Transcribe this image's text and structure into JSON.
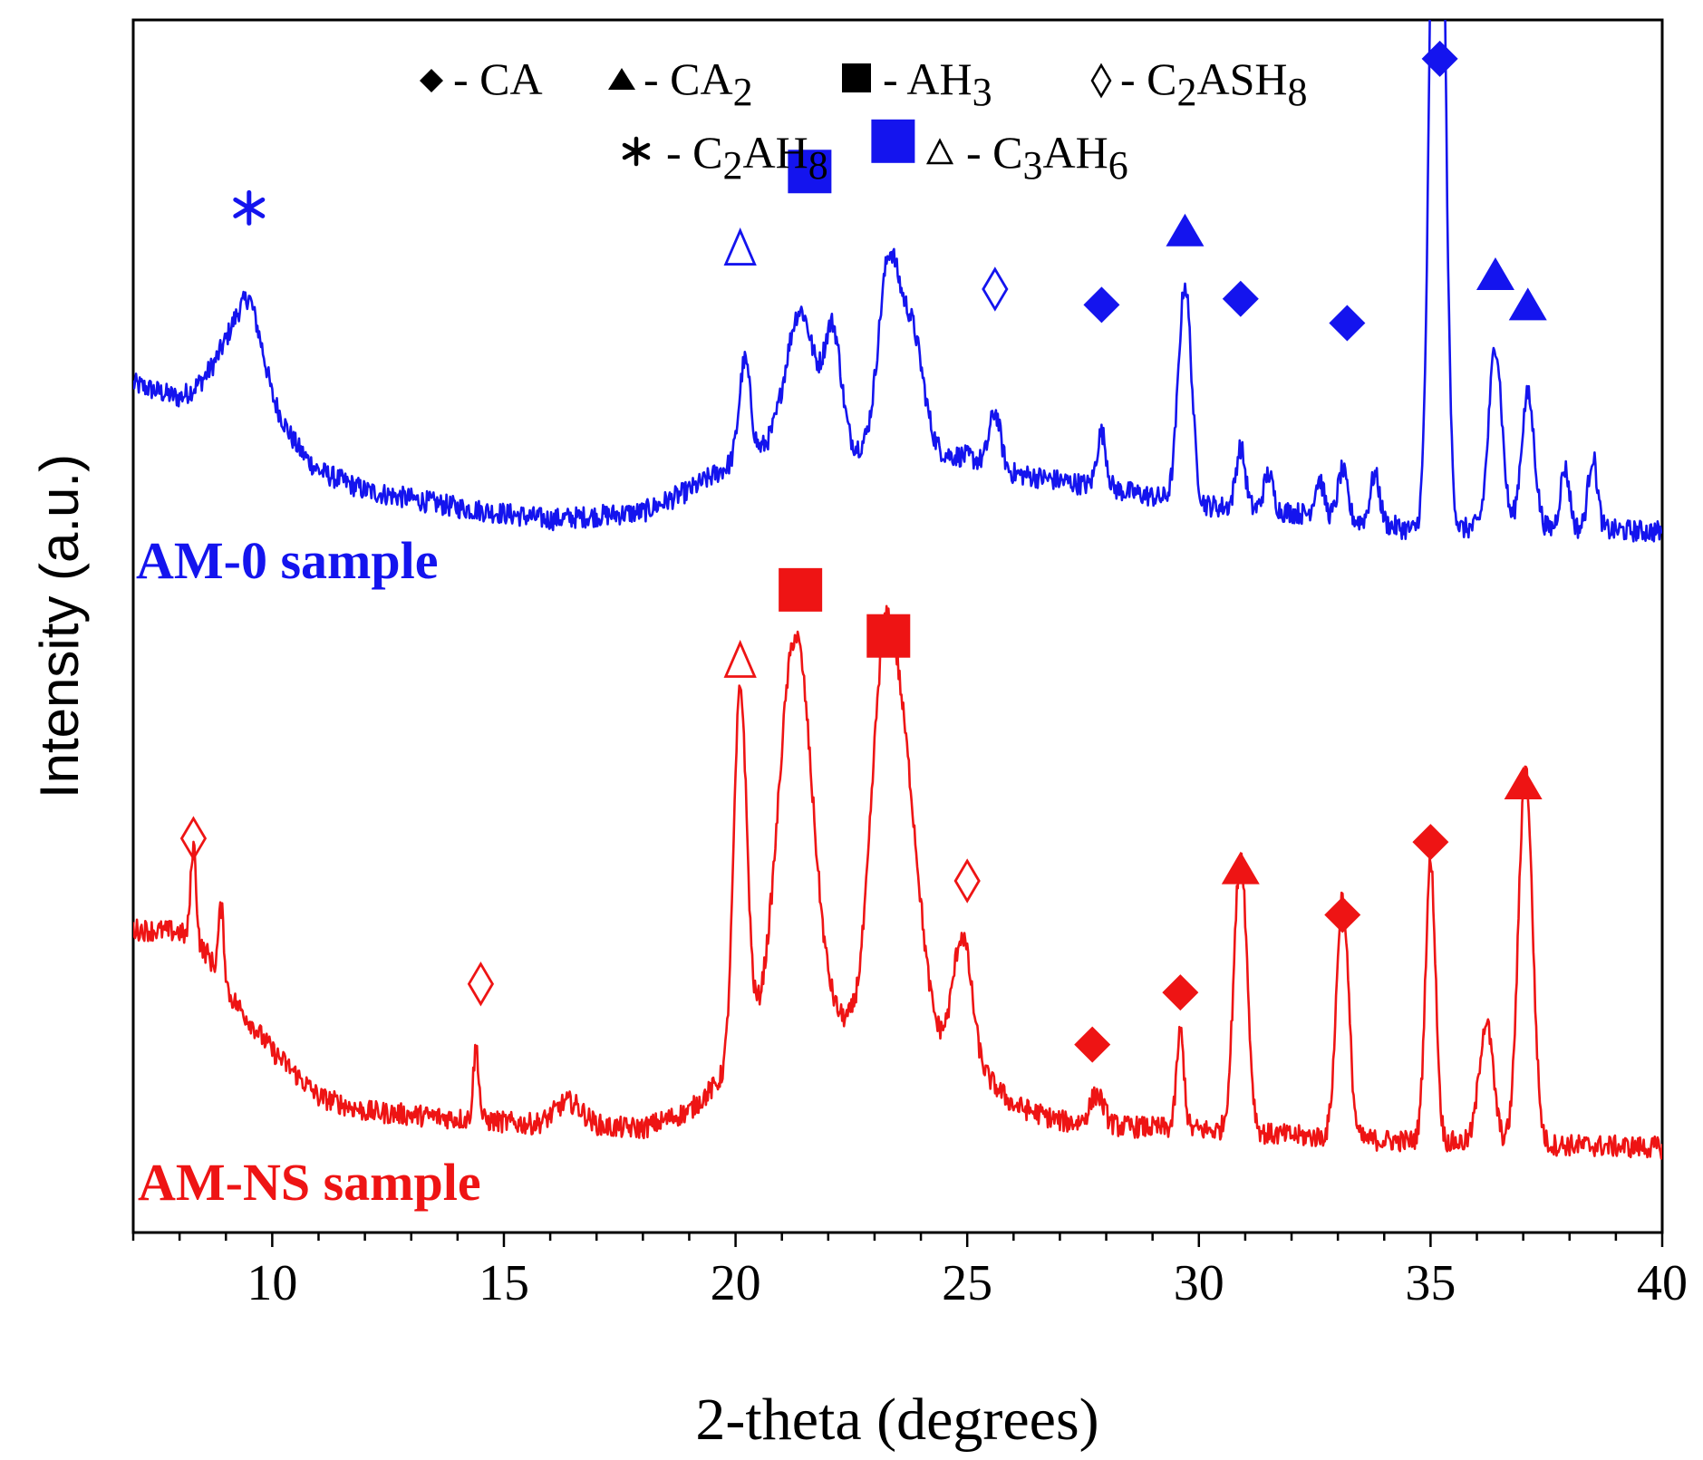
{
  "chart_data": {
    "type": "line",
    "xlabel": "2-theta (degrees)",
    "ylabel": "Intensity (a.u.)",
    "xlim": [
      7,
      40
    ],
    "ylim": [
      0,
      1000
    ],
    "xticks": [
      10,
      15,
      20,
      25,
      30,
      35,
      40
    ],
    "colors": {
      "AM-0": "#1414ee",
      "AM-NS": "#ee1414",
      "legend": "#000000"
    },
    "legend": [
      {
        "marker": "filled-diamond",
        "base": "- CA",
        "sub": ""
      },
      {
        "marker": "filled-triangle",
        "base": "- CA",
        "sub": "2"
      },
      {
        "marker": "filled-square",
        "base": "- AH",
        "sub": "3"
      },
      {
        "marker": "open-diamond",
        "parts": [
          "- C",
          "2",
          "ASH",
          "8"
        ]
      },
      {
        "marker": "asterisk",
        "parts": [
          "- C",
          "2",
          "AH",
          "8"
        ]
      },
      {
        "marker": "open-triangle",
        "parts": [
          "- C",
          "3",
          "AH",
          "6"
        ]
      }
    ],
    "series": [
      {
        "name": "AM-0",
        "label": "AM-0 sample",
        "baseline": 570,
        "noise": 9,
        "background": [
          [
            7,
            700
          ],
          [
            8,
            688
          ],
          [
            9,
            706
          ],
          [
            9.5,
            722
          ],
          [
            10,
            660
          ],
          [
            11,
            628
          ],
          [
            12,
            612
          ],
          [
            14,
            598
          ],
          [
            16,
            588
          ],
          [
            18,
            594
          ],
          [
            19,
            612
          ],
          [
            20,
            636
          ],
          [
            21,
            652
          ],
          [
            22,
            648
          ],
          [
            23,
            644
          ],
          [
            24,
            642
          ],
          [
            25,
            640
          ],
          [
            26,
            626
          ],
          [
            28,
            614
          ],
          [
            30,
            600
          ],
          [
            32,
            594
          ],
          [
            34,
            584
          ],
          [
            35,
            576
          ],
          [
            36,
            582
          ],
          [
            38,
            580
          ],
          [
            40,
            578
          ]
        ],
        "peaks": [
          [
            9.5,
            50,
            0.5
          ],
          [
            20.2,
            80,
            0.12
          ],
          [
            21.4,
            110,
            0.3
          ],
          [
            22.1,
            95,
            0.18
          ],
          [
            23.3,
            150,
            0.22
          ],
          [
            23.8,
            100,
            0.25
          ],
          [
            25.6,
            45,
            0.12
          ],
          [
            27.9,
            45,
            0.1
          ],
          [
            29.7,
            180,
            0.14
          ],
          [
            30.9,
            50,
            0.1
          ],
          [
            31.5,
            30,
            0.1
          ],
          [
            32.6,
            30,
            0.1
          ],
          [
            33.1,
            40,
            0.1
          ],
          [
            33.8,
            40,
            0.1
          ],
          [
            35.15,
            850,
            0.14
          ],
          [
            36.4,
            150,
            0.14
          ],
          [
            37.1,
            110,
            0.14
          ],
          [
            37.9,
            50,
            0.1
          ],
          [
            38.5,
            60,
            0.1
          ]
        ],
        "markers": [
          {
            "x": 9.5,
            "symbol": "asterisk",
            "y": 845
          },
          {
            "x": 20.1,
            "symbol": "open-triangle",
            "y": 812
          },
          {
            "x": 21.6,
            "symbol": "filled-square",
            "y": 875
          },
          {
            "x": 23.4,
            "symbol": "filled-square",
            "y": 900
          },
          {
            "x": 25.6,
            "symbol": "open-diamond",
            "y": 778
          },
          {
            "x": 27.9,
            "symbol": "filled-diamond",
            "y": 765
          },
          {
            "x": 29.7,
            "symbol": "filled-triangle",
            "y": 826
          },
          {
            "x": 30.9,
            "symbol": "filled-diamond",
            "y": 770
          },
          {
            "x": 33.2,
            "symbol": "filled-diamond",
            "y": 750
          },
          {
            "x": 35.2,
            "symbol": "filled-diamond",
            "y": 968
          },
          {
            "x": 36.4,
            "symbol": "filled-triangle",
            "y": 790
          },
          {
            "x": 37.1,
            "symbol": "filled-triangle",
            "y": 765
          }
        ]
      },
      {
        "name": "AM-NS",
        "label": "AM-NS sample",
        "baseline": 70,
        "noise": 9,
        "background": [
          [
            7,
            250
          ],
          [
            8,
            248
          ],
          [
            8.6,
            230
          ],
          [
            9,
            200
          ],
          [
            10,
            150
          ],
          [
            11,
            112
          ],
          [
            12,
            100
          ],
          [
            14,
            94
          ],
          [
            16,
            88
          ],
          [
            18,
            86
          ],
          [
            19,
            100
          ],
          [
            19.8,
            130
          ],
          [
            20.3,
            160
          ],
          [
            21,
            185
          ],
          [
            22,
            175
          ],
          [
            23,
            165
          ],
          [
            24,
            158
          ],
          [
            24.8,
            148
          ],
          [
            25.5,
            125
          ],
          [
            26,
            105
          ],
          [
            27,
            92
          ],
          [
            28,
            88
          ],
          [
            30,
            85
          ],
          [
            32,
            80
          ],
          [
            34,
            76
          ],
          [
            36,
            74
          ],
          [
            38,
            72
          ],
          [
            40,
            70
          ]
        ],
        "peaks": [
          [
            8.3,
            80,
            0.06
          ],
          [
            8.9,
            60,
            0.06
          ],
          [
            14.4,
            60,
            0.06
          ],
          [
            16.4,
            20,
            0.3
          ],
          [
            20.1,
            300,
            0.14
          ],
          [
            21.3,
            310,
            0.35
          ],
          [
            23.2,
            290,
            0.28
          ],
          [
            23.7,
            180,
            0.3
          ],
          [
            24.9,
            100,
            0.2
          ],
          [
            27.8,
            25,
            0.15
          ],
          [
            29.6,
            80,
            0.08
          ],
          [
            30.9,
            230,
            0.14
          ],
          [
            33.1,
            200,
            0.13
          ],
          [
            35.0,
            230,
            0.11
          ],
          [
            36.2,
            100,
            0.15
          ],
          [
            37.05,
            310,
            0.15
          ]
        ],
        "markers": [
          {
            "x": 8.3,
            "symbol": "open-diamond",
            "y": 325
          },
          {
            "x": 14.5,
            "symbol": "open-diamond",
            "y": 205
          },
          {
            "x": 20.1,
            "symbol": "open-triangle",
            "y": 472
          },
          {
            "x": 21.4,
            "symbol": "filled-square",
            "y": 530
          },
          {
            "x": 23.3,
            "symbol": "filled-square",
            "y": 492
          },
          {
            "x": 25.0,
            "symbol": "open-diamond",
            "y": 290
          },
          {
            "x": 27.7,
            "symbol": "filled-diamond",
            "y": 155
          },
          {
            "x": 29.6,
            "symbol": "filled-diamond",
            "y": 198
          },
          {
            "x": 30.9,
            "symbol": "filled-triangle",
            "y": 300
          },
          {
            "x": 33.1,
            "symbol": "filled-diamond",
            "y": 262
          },
          {
            "x": 35.0,
            "symbol": "filled-diamond",
            "y": 322
          },
          {
            "x": 37.0,
            "symbol": "filled-triangle",
            "y": 370
          }
        ]
      }
    ]
  }
}
